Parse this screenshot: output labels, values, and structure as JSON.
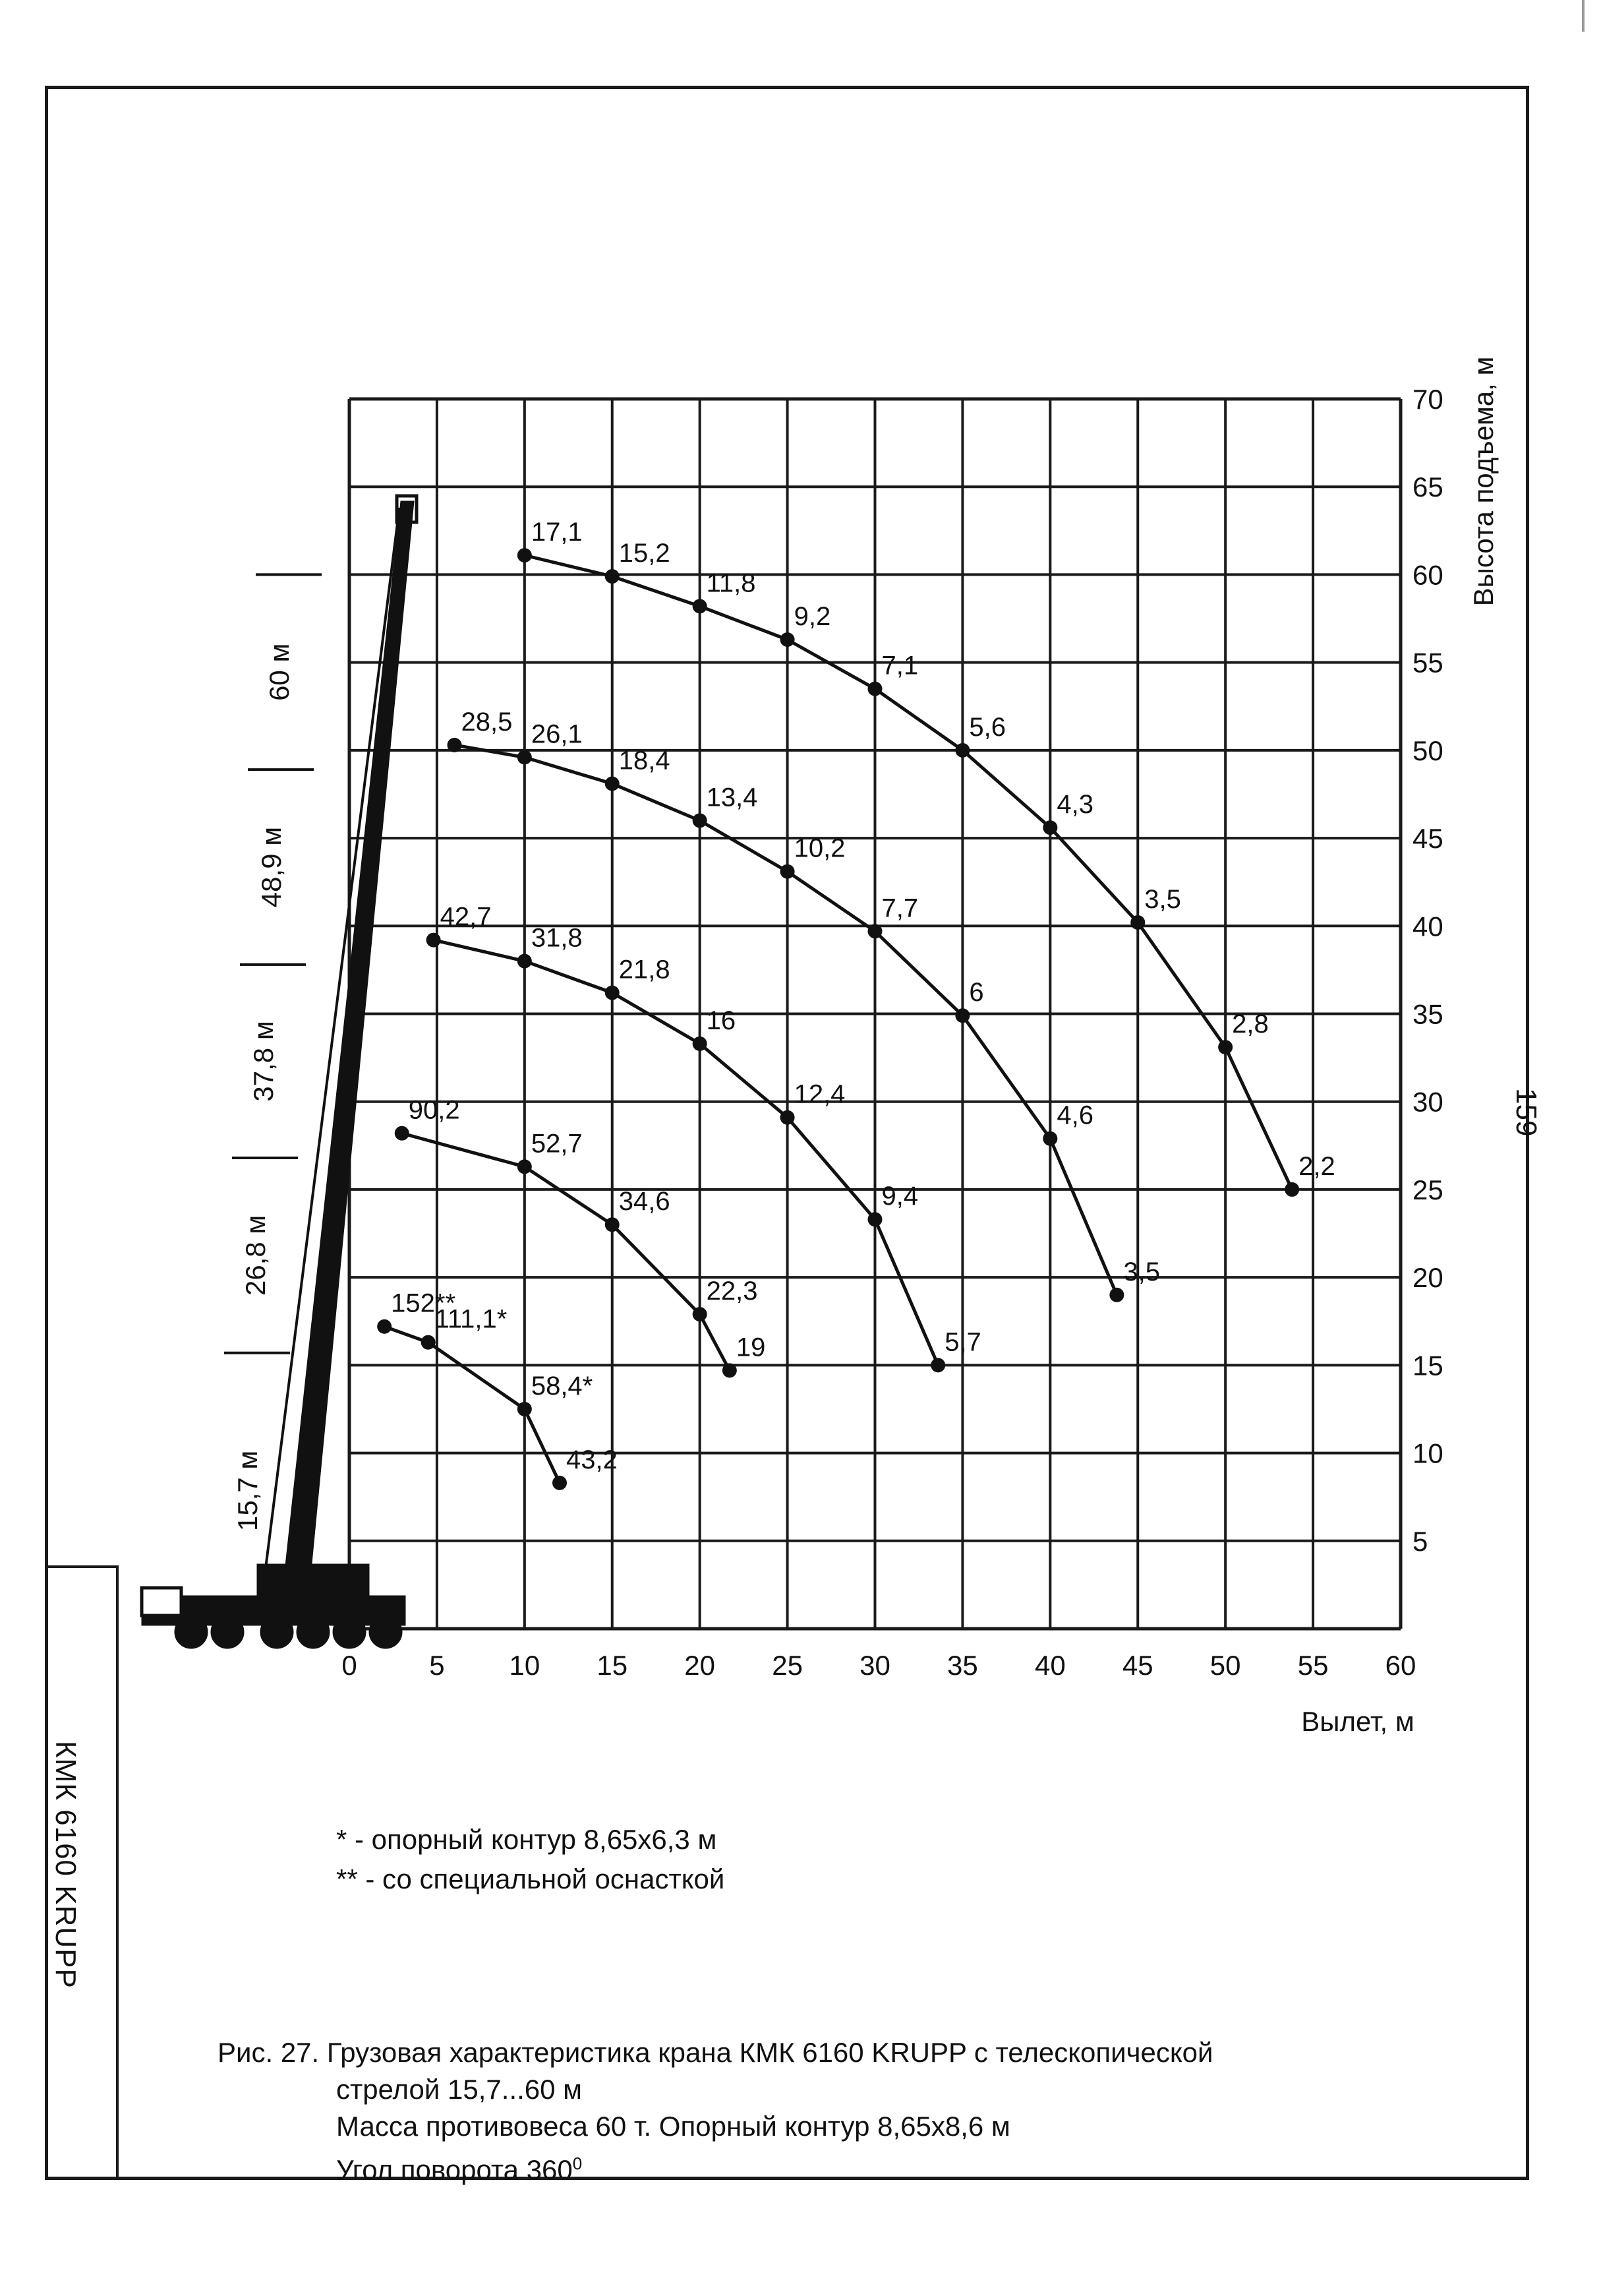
{
  "page": {
    "number": "159",
    "sidebar_label": "КМК 6160 KRUPP"
  },
  "chart_data": {
    "type": "line",
    "title": "",
    "xlabel": "Вылет, м",
    "ylabel": "Высота подъема, м",
    "xlim": [
      0,
      60
    ],
    "ylim": [
      0,
      70
    ],
    "x_ticks": [
      "0",
      "5",
      "10",
      "15",
      "20",
      "25",
      "30",
      "35",
      "40",
      "45",
      "50",
      "55",
      "60"
    ],
    "y_ticks": [
      "5",
      "10",
      "15",
      "20",
      "25",
      "30",
      "35",
      "40",
      "45",
      "50",
      "55",
      "60",
      "65",
      "70"
    ],
    "grid": true,
    "boom_lengths": [
      {
        "label": "15,7 м",
        "length": 15.7
      },
      {
        "label": "26,8 м",
        "length": 26.8
      },
      {
        "label": "37,8 м",
        "length": 37.8
      },
      {
        "label": "48,9 м",
        "length": 48.9
      },
      {
        "label": "60 м",
        "length": 60
      }
    ],
    "series": [
      {
        "boom": "15,7 м",
        "points": [
          {
            "x": 2,
            "y": 17.2,
            "label": "152**"
          },
          {
            "x": 4.5,
            "y": 16.3,
            "label": "111,1*"
          },
          {
            "x": 10,
            "y": 12.5,
            "label": "58,4*"
          },
          {
            "x": 12,
            "y": 8.3,
            "label": "43,2"
          }
        ]
      },
      {
        "boom": "26,8 м",
        "points": [
          {
            "x": 3,
            "y": 28.2,
            "label": "90,2"
          },
          {
            "x": 10,
            "y": 26.3,
            "label": "52,7"
          },
          {
            "x": 15,
            "y": 23,
            "label": "34,6"
          },
          {
            "x": 20,
            "y": 17.9,
            "label": "22,3"
          },
          {
            "x": 21.7,
            "y": 14.7,
            "label": "19"
          }
        ]
      },
      {
        "boom": "37,8 м",
        "points": [
          {
            "x": 4.8,
            "y": 39.2,
            "label": "42,7"
          },
          {
            "x": 10,
            "y": 38,
            "label": "31,8"
          },
          {
            "x": 15,
            "y": 36.2,
            "label": "21,8"
          },
          {
            "x": 20,
            "y": 33.3,
            "label": "16"
          },
          {
            "x": 25,
            "y": 29.1,
            "label": "12,4"
          },
          {
            "x": 30,
            "y": 23.3,
            "label": "9,4"
          },
          {
            "x": 33.6,
            "y": 15,
            "label": "5,7"
          }
        ]
      },
      {
        "boom": "48,9 м",
        "points": [
          {
            "x": 6,
            "y": 50.3,
            "label": "28,5"
          },
          {
            "x": 10,
            "y": 49.6,
            "label": "26,1"
          },
          {
            "x": 15,
            "y": 48.1,
            "label": "18,4"
          },
          {
            "x": 20,
            "y": 46,
            "label": "13,4"
          },
          {
            "x": 25,
            "y": 43.1,
            "label": "10,2"
          },
          {
            "x": 30,
            "y": 39.7,
            "label": "7,7"
          },
          {
            "x": 35,
            "y": 34.9,
            "label": "6"
          },
          {
            "x": 40,
            "y": 27.9,
            "label": "4,6"
          },
          {
            "x": 43.8,
            "y": 19,
            "label": "3,5"
          }
        ]
      },
      {
        "boom": "60 м",
        "points": [
          {
            "x": 10,
            "y": 61.1,
            "label": "17,1"
          },
          {
            "x": 15,
            "y": 59.9,
            "label": "15,2"
          },
          {
            "x": 20,
            "y": 58.2,
            "label": "11,8"
          },
          {
            "x": 25,
            "y": 56.3,
            "label": "9,2"
          },
          {
            "x": 30,
            "y": 53.5,
            "label": "7,1"
          },
          {
            "x": 35,
            "y": 50,
            "label": "5,6"
          },
          {
            "x": 40,
            "y": 45.6,
            "label": "4,3"
          },
          {
            "x": 45,
            "y": 40.2,
            "label": "3,5"
          },
          {
            "x": 50,
            "y": 33.1,
            "label": "2,8"
          },
          {
            "x": 53.8,
            "y": 25,
            "label": "2,2"
          }
        ]
      }
    ]
  },
  "notes": [
    "*  - опорный контур 8,65х6,3 м",
    "** - со специальной оснасткой"
  ],
  "caption": {
    "line1": "Рис. 27. Грузовая характеристика крана КМК 6160 KRUPP с телескопической",
    "line2": "стрелой 15,7...60 м",
    "line3": "Масса противовеса 60 т. Опорный контур 8,65х8,6 м",
    "line4": "Угол поворота 360",
    "line4_sup": "0"
  }
}
